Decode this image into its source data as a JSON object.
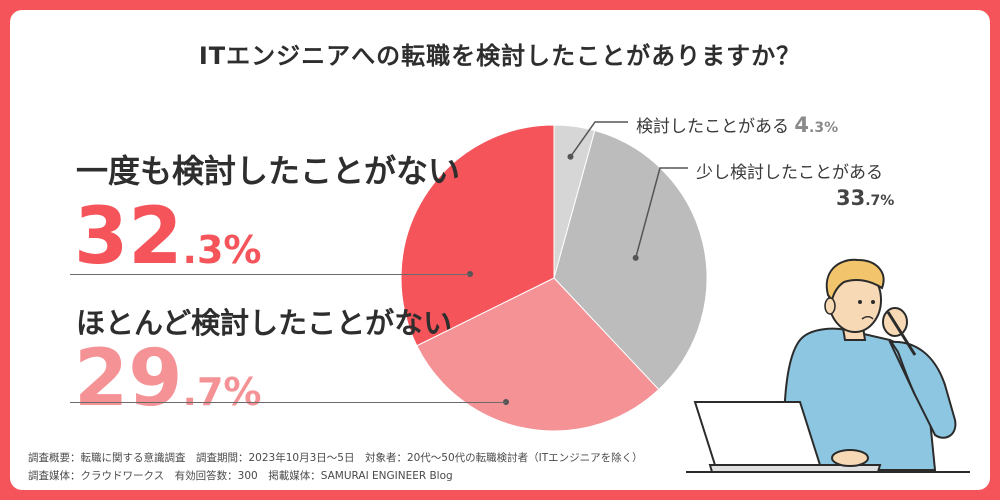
{
  "title": "ITエンジニアへの転職を検討したことがありますか？",
  "chart_data": {
    "type": "pie",
    "title": "ITエンジニアへの転職を検討したことがありますか？",
    "slices": [
      {
        "label": "検討したことがある",
        "value": 4.3,
        "value_int": "4",
        "value_dec": ".3%",
        "color": "#d6d6d6"
      },
      {
        "label": "少し検討したことがある",
        "value": 33.7,
        "value_int": "33",
        "value_dec": ".7%",
        "color": "#bcbcbc"
      },
      {
        "label": "ほとんど検討したことがない",
        "value": 29.7,
        "value_int": "29",
        "value_dec": ".7%",
        "color": "#f49296"
      },
      {
        "label": "一度も検討したことがない",
        "value": 32.3,
        "value_int": "32",
        "value_dec": ".3%",
        "color": "#f4545a"
      }
    ]
  },
  "footnotes": [
    "調査概要：転職に関する意識調査　調査期間：2023年10月3日〜5日　対象者：20代〜50代の転職検討者（ITエンジニアを除く）",
    "調査媒体：クラウドワークス　有効回答数：300　掲載媒体：SAMURAI ENGINEER Blog"
  ]
}
